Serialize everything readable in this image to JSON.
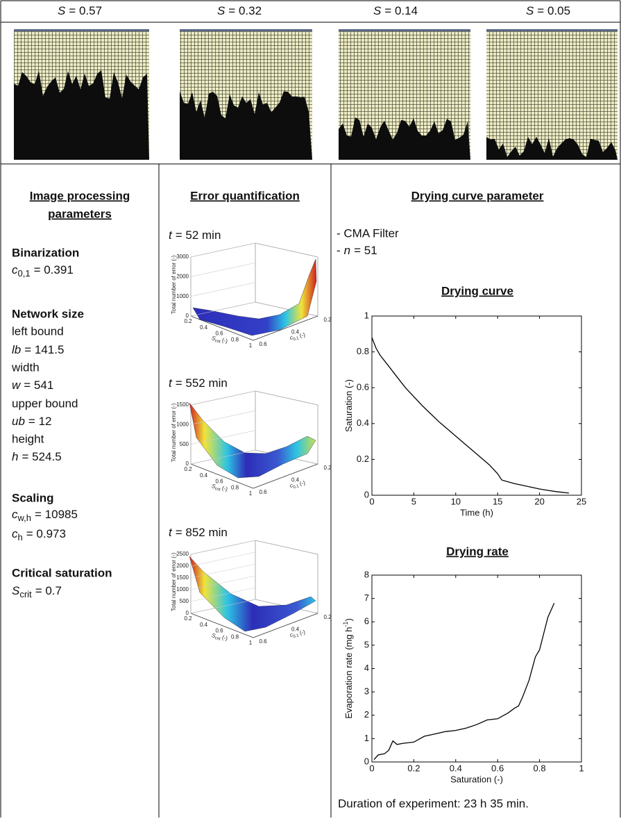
{
  "header_row": [
    {
      "var": "S",
      "text": "= 0.57"
    },
    {
      "var": "S",
      "text": "= 0.32"
    },
    {
      "var": "S",
      "text": "= 0.14"
    },
    {
      "var": "S",
      "text": "= 0.05"
    }
  ],
  "image_processing": {
    "title_line1": "Image processing",
    "title_line2": "parameters",
    "lines": [
      {
        "heading": "Binarization"
      },
      {
        "var": "c",
        "sub": "0,1",
        "text": "= 0.391"
      },
      {
        "heading": "Network size"
      },
      {
        "label": "left bound"
      },
      {
        "var": "lb",
        "text": "= 141.5"
      },
      {
        "label": "width"
      },
      {
        "var": "w",
        "text": "= 541"
      },
      {
        "label": "upper bound"
      },
      {
        "var": "ub",
        "text": "= 12"
      },
      {
        "label": "height"
      },
      {
        "var": "h",
        "text": "= 524.5"
      },
      {
        "heading": "Scaling"
      },
      {
        "var": "c",
        "sub": "w,h",
        "text": "= 10985"
      },
      {
        "var": "c",
        "sub": "h",
        "text": "= 0.973"
      },
      {
        "heading": "Critical saturation"
      },
      {
        "var": "S",
        "sub": "crit",
        "text": "= 0.7"
      }
    ]
  },
  "error_quantification": {
    "title": "Error quantification",
    "plots": [
      {
        "var": "t",
        "text": "= 52 min",
        "zticks": [
          0,
          1000,
          2000,
          3000
        ],
        "xticks": [
          0.2,
          0.4,
          0.6,
          0.8,
          1
        ],
        "yticks": [
          0.6,
          0.4,
          0.2
        ],
        "z_label": "Total number of error (-)",
        "x_label": {
          "var": "S",
          "sub": "crit",
          "text": "(-)"
        },
        "y_label": {
          "var": "c",
          "sub": "0,1",
          "text": "(-)"
        }
      },
      {
        "var": "t",
        "text": "= 552 min",
        "zticks": [
          0,
          500,
          1000,
          1500
        ],
        "xticks": [
          0.2,
          0.4,
          0.6,
          0.8,
          1
        ],
        "yticks": [
          0.6,
          0.4,
          0.2
        ],
        "z_label": "Total number of error (-)",
        "x_label": {
          "var": "S",
          "sub": "crit",
          "text": "(-)"
        },
        "y_label": {
          "var": "c",
          "sub": "0,1",
          "text": "(-)"
        }
      },
      {
        "var": "t",
        "text": "= 852 min",
        "zticks": [
          0,
          500,
          1000,
          1500,
          2000,
          2500
        ],
        "xticks": [
          0.2,
          0.4,
          0.6,
          0.8,
          1
        ],
        "yticks": [
          0.6,
          0.4,
          0.2
        ],
        "z_label": "Total number of error (-)",
        "x_label": {
          "var": "S",
          "sub": "crit",
          "text": "(-)"
        },
        "y_label": {
          "var": "c",
          "sub": "0,1",
          "text": "(-)"
        }
      }
    ]
  },
  "drying_parameters": {
    "title": "Drying curve parameter",
    "items": [
      {
        "text": "- CMA Filter"
      },
      {
        "prefix": "-",
        "var": "n",
        "text": "= 51"
      }
    ]
  },
  "chart_data": [
    {
      "type": "line",
      "title": "Drying curve",
      "x_label": "Time (h)",
      "y_label": "Saturation (-)",
      "color": "#000000",
      "x": [
        0,
        0.5,
        1,
        2,
        3,
        4,
        5,
        6,
        7,
        8,
        9,
        10,
        11,
        12,
        13,
        14,
        15,
        15.5,
        17,
        18,
        19,
        20,
        21,
        22,
        23.5
      ],
      "values": [
        0.88,
        0.82,
        0.78,
        0.72,
        0.66,
        0.6,
        0.55,
        0.5,
        0.455,
        0.41,
        0.37,
        0.33,
        0.29,
        0.25,
        0.21,
        0.17,
        0.12,
        0.085,
        0.065,
        0.055,
        0.045,
        0.035,
        0.027,
        0.02,
        0.012
      ],
      "xlim": [
        0,
        25
      ],
      "xticks": [
        0,
        5,
        10,
        15,
        20,
        25
      ],
      "ylim": [
        0,
        1
      ],
      "yticks": [
        0,
        0.2,
        0.4,
        0.6,
        0.8,
        1
      ]
    },
    {
      "type": "line",
      "title": "Drying rate",
      "x_label": "Saturation (-)",
      "y_label": "Evaporation rate (mg h",
      "y_label_sup": "-1",
      "y_label_end": ")",
      "color": "#000000",
      "x": [
        0.01,
        0.03,
        0.06,
        0.08,
        0.1,
        0.12,
        0.15,
        0.2,
        0.25,
        0.3,
        0.35,
        0.4,
        0.45,
        0.5,
        0.55,
        0.6,
        0.65,
        0.68,
        0.7,
        0.72,
        0.75,
        0.78,
        0.8,
        0.82,
        0.84,
        0.86,
        0.87
      ],
      "values": [
        0.1,
        0.3,
        0.35,
        0.5,
        0.9,
        0.75,
        0.8,
        0.85,
        1.1,
        1.2,
        1.3,
        1.35,
        1.45,
        1.6,
        1.8,
        1.85,
        2.1,
        2.3,
        2.4,
        2.8,
        3.5,
        4.5,
        4.8,
        5.5,
        6.2,
        6.6,
        6.8
      ],
      "xlim": [
        0,
        1
      ],
      "xticks": [
        0,
        0.2,
        0.4,
        0.6,
        0.8,
        1
      ],
      "ylim": [
        0,
        8
      ],
      "yticks": [
        0,
        1,
        2,
        3,
        4,
        5,
        6,
        7,
        8
      ]
    }
  ],
  "duration": "Duration of experiment: 23 h 35 min."
}
